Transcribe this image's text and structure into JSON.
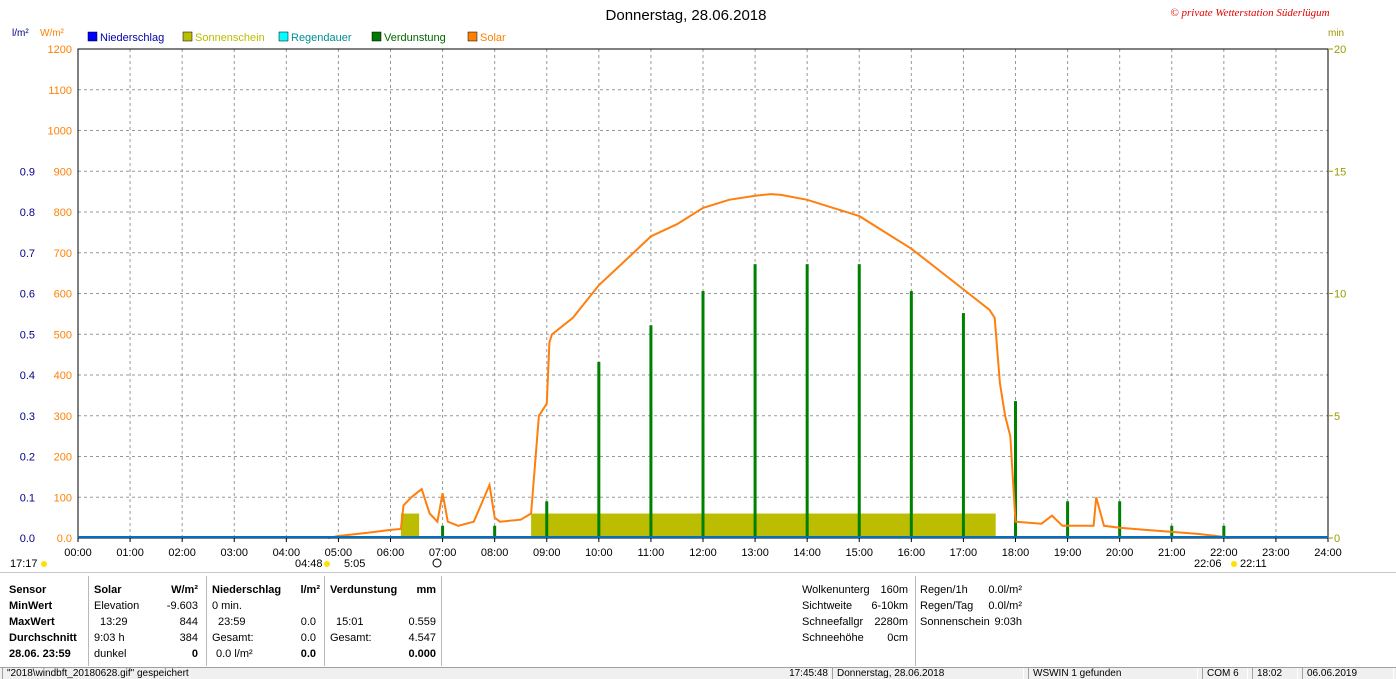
{
  "title": "Donnerstag, 28.06.2018",
  "copyright": "© private Wetterstation Süderlügum",
  "left_axis_units": [
    "l/m²",
    "W/m²"
  ],
  "right_axis_unit": "min",
  "legend": [
    {
      "label": "Niederschlag",
      "color": "#0000ff"
    },
    {
      "label": "Sonnenschein",
      "color": "#bcbc00"
    },
    {
      "label": "Regendauer",
      "color": "#00ffff"
    },
    {
      "label": "Verdunstung",
      "color": "#007700"
    },
    {
      "label": "Solar",
      "color": "#ff8000"
    }
  ],
  "colors": {
    "solar": "#ff7f0e",
    "sunshine": "#bcbc00",
    "evaporation": "#008000",
    "precip": "#0070c0",
    "rain_axis": "#00008b",
    "solar_axis": "#ff8000",
    "min_axis": "#999900"
  },
  "astro": {
    "left_time": "17:17",
    "sunrise_a": "04:48",
    "sunrise_b": "5:05",
    "sunset_a": "22:06",
    "sunset_b": "22:11"
  },
  "chart_data": {
    "type": "line",
    "x_range_hours": [
      0,
      24
    ],
    "x_ticks": [
      "00:00",
      "01:00",
      "02:00",
      "03:00",
      "04:00",
      "05:00",
      "06:00",
      "07:00",
      "08:00",
      "09:00",
      "10:00",
      "11:00",
      "12:00",
      "13:00",
      "14:00",
      "15:00",
      "16:00",
      "17:00",
      "18:00",
      "19:00",
      "20:00",
      "21:00",
      "22:00",
      "23:00",
      "24:00"
    ],
    "axes": {
      "rain": {
        "unit": "l/m²",
        "range": [
          0,
          1.2
        ],
        "ticks": [
          "0.0",
          "0.1",
          "0.2",
          "0.3",
          "0.4",
          "0.5",
          "0.6",
          "0.7",
          "0.8",
          "0.9"
        ]
      },
      "solar": {
        "unit": "W/m²",
        "range": [
          0,
          1200
        ],
        "ticks": [
          "0.0",
          "100",
          "200",
          "300",
          "400",
          "500",
          "600",
          "700",
          "800",
          "900",
          "1000",
          "1100",
          "1200"
        ]
      },
      "minutes": {
        "unit": "min",
        "range": [
          0,
          20
        ],
        "ticks": [
          "0",
          "5",
          "10",
          "15",
          "20"
        ]
      }
    },
    "grid": true,
    "series": [
      {
        "name": "Solar",
        "axis": "solar",
        "type": "line",
        "points": [
          [
            4.8,
            0
          ],
          [
            5.0,
            5
          ],
          [
            5.5,
            12
          ],
          [
            6.0,
            20
          ],
          [
            6.2,
            22
          ],
          [
            6.25,
            80
          ],
          [
            6.4,
            100
          ],
          [
            6.6,
            120
          ],
          [
            6.75,
            60
          ],
          [
            6.9,
            40
          ],
          [
            7.0,
            110
          ],
          [
            7.1,
            40
          ],
          [
            7.3,
            30
          ],
          [
            7.6,
            40
          ],
          [
            8.0,
            50
          ],
          [
            7.9,
            130
          ],
          [
            8.1,
            40
          ],
          [
            8.5,
            45
          ],
          [
            8.7,
            60
          ],
          [
            8.85,
            300
          ],
          [
            9.0,
            330
          ],
          [
            9.05,
            480
          ],
          [
            9.1,
            500
          ],
          [
            9.5,
            540
          ],
          [
            10.0,
            620
          ],
          [
            10.5,
            680
          ],
          [
            11.0,
            740
          ],
          [
            11.5,
            770
          ],
          [
            12.0,
            810
          ],
          [
            12.5,
            830
          ],
          [
            13.0,
            840
          ],
          [
            13.3,
            844
          ],
          [
            13.5,
            842
          ],
          [
            14.0,
            830
          ],
          [
            14.5,
            810
          ],
          [
            15.0,
            790
          ],
          [
            15.5,
            750
          ],
          [
            16.0,
            710
          ],
          [
            16.5,
            660
          ],
          [
            17.0,
            610
          ],
          [
            17.5,
            560
          ],
          [
            17.6,
            540
          ],
          [
            17.7,
            380
          ],
          [
            17.8,
            300
          ],
          [
            17.9,
            250
          ],
          [
            18.0,
            40
          ],
          [
            18.5,
            35
          ],
          [
            18.7,
            55
          ],
          [
            18.9,
            30
          ],
          [
            19.5,
            30
          ],
          [
            19.55,
            100
          ],
          [
            19.7,
            30
          ],
          [
            20.0,
            25
          ],
          [
            20.5,
            20
          ],
          [
            21.0,
            15
          ],
          [
            21.5,
            10
          ],
          [
            22.0,
            3
          ],
          [
            22.1,
            0
          ]
        ]
      },
      {
        "name": "Sonnenschein",
        "axis": "minutes",
        "type": "bar",
        "intervals": [
          [
            6.2,
            6.55,
            1
          ],
          [
            8.7,
            17.62,
            1
          ]
        ]
      },
      {
        "name": "Verdunstung",
        "axis": "minutes",
        "type": "bar",
        "spikes": [
          [
            8.0,
            0.5
          ],
          [
            9.0,
            1.5
          ],
          [
            10.0,
            7.2
          ],
          [
            11.0,
            8.7
          ],
          [
            12.0,
            10.1
          ],
          [
            13.0,
            11.2
          ],
          [
            14.0,
            11.2
          ],
          [
            15.0,
            11.2
          ],
          [
            16.0,
            10.1
          ],
          [
            17.0,
            9.2
          ],
          [
            18.0,
            5.6
          ],
          [
            19.0,
            1.5
          ],
          [
            20.0,
            1.5
          ],
          [
            21.0,
            0.5
          ],
          [
            22.0,
            0.5
          ],
          [
            7.0,
            0.5
          ]
        ]
      },
      {
        "name": "Niederschlag",
        "axis": "rain",
        "type": "line",
        "points": [
          [
            0,
            0
          ],
          [
            24,
            0
          ]
        ]
      }
    ]
  },
  "table": {
    "sensor": {
      "header": "Sensor",
      "rows": [
        "MinWert",
        "MaxWert",
        "Durchschnitt",
        "28.06.  23:59"
      ]
    },
    "solar": {
      "header": "Solar",
      "unit": "W/m²",
      "rows": [
        [
          "Elevation",
          "-9.603"
        ],
        [
          "13:29",
          "844"
        ],
        [
          "9:03 h",
          "384"
        ],
        [
          "dunkel",
          "0"
        ]
      ]
    },
    "precip": {
      "header": "Niederschlag",
      "unit": "l/m²",
      "rows": [
        [
          "0 min.",
          ""
        ],
        [
          "23:59",
          "0.0"
        ],
        [
          "Gesamt:",
          "0.0"
        ],
        [
          "0.0 l/m²",
          "0.0"
        ]
      ]
    },
    "evap": {
      "header": "Verdunstung",
      "unit": "mm",
      "rows": [
        [
          "",
          ""
        ],
        [
          "15:01",
          "0.559"
        ],
        [
          "Gesamt:",
          "4.547"
        ],
        [
          "",
          "0.000"
        ]
      ]
    },
    "weather": [
      [
        "Wolkenunterg",
        "160m"
      ],
      [
        "Sichtweite",
        "6-10km"
      ],
      [
        "Schneefallgr",
        "2280m"
      ],
      [
        "Schneehöhe",
        "0cm"
      ]
    ],
    "rain": [
      [
        "Regen/1h",
        "0.0l/m²"
      ],
      [
        "Regen/Tag",
        "0.0l/m²"
      ],
      [
        "Sonnenschein",
        "9:03h"
      ]
    ]
  },
  "status": {
    "file": "\"2018\\windbft_20180628.gif\" gespeichert",
    "time": "17:45:48",
    "date": "Donnerstag, 28.06.2018",
    "wswin": "WSWIN 1 gefunden",
    "com": "COM 6",
    "clock": "18:02",
    "today": "06.06.2019"
  }
}
